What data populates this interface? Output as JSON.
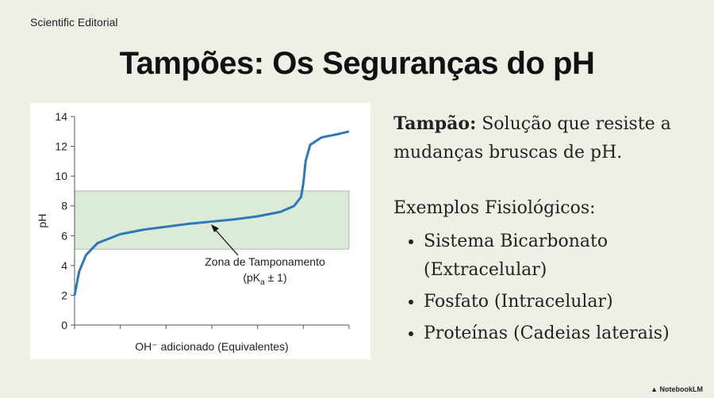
{
  "header": {
    "brand": "Scientific Editorial",
    "title": "Tampões: Os Seguranças do pH"
  },
  "chart_data": {
    "type": "line",
    "ylabel": "pH",
    "xlabel": "OH⁻ adicionado (Equivalentes)",
    "x": [
      0,
      0.1,
      0.25,
      0.5,
      1,
      1.5,
      2,
      2.5,
      3,
      3.5,
      4,
      4.5,
      4.8,
      4.95,
      5.0,
      5.05,
      5.15,
      5.4,
      5.8,
      6
    ],
    "values": [
      2.0,
      3.6,
      4.7,
      5.5,
      6.1,
      6.4,
      6.6,
      6.8,
      6.95,
      7.1,
      7.3,
      7.6,
      8.0,
      8.6,
      9.5,
      11.0,
      12.1,
      12.6,
      12.85,
      13.0
    ],
    "color": "#2f77b5",
    "xlim": [
      0,
      6
    ],
    "xticks": [
      0,
      1,
      2,
      3,
      4,
      5,
      6
    ],
    "ylim": [
      0,
      14
    ],
    "yticks": [
      0,
      2,
      4,
      6,
      8,
      10,
      12,
      14
    ],
    "band": [
      5.1,
      9
    ],
    "band_color": "#dcebd9",
    "annotation": {
      "line1": "Zona de Tamponamento",
      "line2a": "(pK",
      "sub": "a",
      "line2b": " ± 1)"
    }
  },
  "definition": {
    "term": "Tampão:",
    "text": "Solução que resiste a mudanças bruscas de pH."
  },
  "examples": {
    "heading": "Exemplos Fisiológicos:",
    "items": [
      "Sistema Bicarbonato (Extracelular)",
      "Fosfato (Intracelular)",
      "Proteínas (Cadeias laterais)"
    ]
  },
  "footer": {
    "brand": "NotebookLM"
  }
}
